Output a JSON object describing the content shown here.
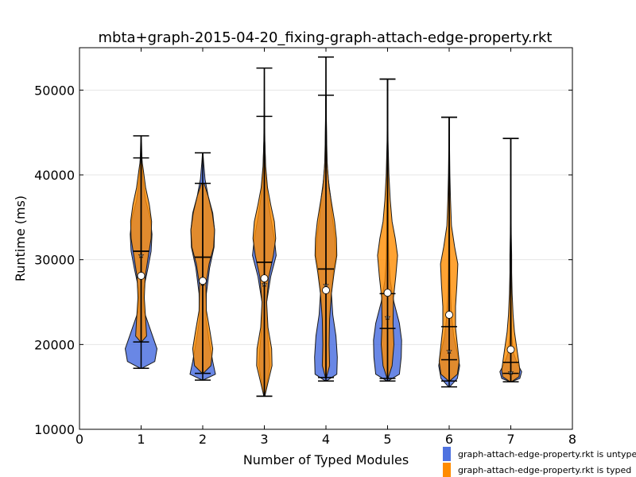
{
  "chart_data": {
    "type": "violin",
    "title": "mbta+graph-2015-04-20_fixing-graph-attach-edge-property.rkt",
    "xlabel": "Number of Typed Modules",
    "ylabel": "Runtime (ms)",
    "xlim": [
      0,
      8
    ],
    "ylim": [
      10000,
      55000
    ],
    "x_ticks": [
      "0",
      "1",
      "2",
      "3",
      "4",
      "5",
      "6",
      "7",
      "8"
    ],
    "y_ticks": [
      "10000",
      "20000",
      "30000",
      "40000",
      "50000"
    ],
    "grid": "horizontal",
    "legend_placement": "bottom-right",
    "colors": {
      "untyped": "#4f72e0",
      "typed": "#ff8c00"
    },
    "series": [
      {
        "name": "graph-attach-edge-property.rkt is untyped",
        "color": "#4f72e0",
        "groups": [
          {
            "x": 1,
            "min": 17200,
            "max": 44600,
            "median": 31000,
            "mean": 30500,
            "profile": [
              [
                17200,
                0.02
              ],
              [
                18000,
                0.3
              ],
              [
                19500,
                0.35
              ],
              [
                21500,
                0.22
              ],
              [
                24000,
                0.06
              ],
              [
                26500,
                0.05
              ],
              [
                29000,
                0.15
              ],
              [
                31000,
                0.22
              ],
              [
                33000,
                0.24
              ],
              [
                35000,
                0.2
              ],
              [
                37000,
                0.1
              ],
              [
                39500,
                0.04
              ],
              [
                42000,
                0.02
              ],
              [
                44600,
                0.005
              ]
            ]
          },
          {
            "x": 2,
            "min": 15800,
            "max": 42600,
            "median": 30300,
            "mean": 27200,
            "profile": [
              [
                15800,
                0.01
              ],
              [
                16500,
                0.28
              ],
              [
                18000,
                0.22
              ],
              [
                20500,
                0.14
              ],
              [
                23000,
                0.07
              ],
              [
                26000,
                0.08
              ],
              [
                29000,
                0.15
              ],
              [
                31500,
                0.25
              ],
              [
                33500,
                0.26
              ],
              [
                35500,
                0.22
              ],
              [
                37500,
                0.12
              ],
              [
                39500,
                0.05
              ],
              [
                41500,
                0.02
              ],
              [
                42600,
                0.005
              ]
            ]
          },
          {
            "x": 3,
            "min": 13900,
            "max": 52600,
            "median": 29700,
            "mean": 27100,
            "profile": [
              [
                13900,
                0.01
              ],
              [
                15500,
                0.06
              ],
              [
                17500,
                0.12
              ],
              [
                19500,
                0.1
              ],
              [
                22000,
                0.06
              ],
              [
                25000,
                0.05
              ],
              [
                28000,
                0.14
              ],
              [
                30500,
                0.26
              ],
              [
                32500,
                0.22
              ],
              [
                35000,
                0.14
              ],
              [
                37500,
                0.07
              ],
              [
                40000,
                0.03
              ],
              [
                44000,
                0.01
              ],
              [
                49000,
                0.005
              ],
              [
                52600,
                0.003
              ]
            ]
          },
          {
            "x": 4,
            "min": 15700,
            "max": 53900,
            "median": 28900,
            "mean": 27000,
            "profile": [
              [
                15700,
                0.01
              ],
              [
                16500,
                0.24
              ],
              [
                18500,
                0.25
              ],
              [
                21000,
                0.22
              ],
              [
                23500,
                0.15
              ],
              [
                26000,
                0.12
              ],
              [
                28500,
                0.16
              ],
              [
                30500,
                0.22
              ],
              [
                32500,
                0.2
              ],
              [
                35000,
                0.14
              ],
              [
                37500,
                0.1
              ],
              [
                39500,
                0.05
              ],
              [
                42000,
                0.02
              ],
              [
                46000,
                0.01
              ],
              [
                50000,
                0.005
              ],
              [
                53900,
                0.003
              ]
            ]
          },
          {
            "x": 5,
            "min": 15700,
            "max": 51300,
            "median": 21900,
            "mean": 23200,
            "profile": [
              [
                15700,
                0.01
              ],
              [
                16500,
                0.26
              ],
              [
                18500,
                0.3
              ],
              [
                20500,
                0.31
              ],
              [
                22500,
                0.26
              ],
              [
                25000,
                0.14
              ],
              [
                27500,
                0.06
              ],
              [
                30000,
                0.03
              ],
              [
                33000,
                0.02
              ],
              [
                36000,
                0.015
              ],
              [
                40000,
                0.01
              ],
              [
                45000,
                0.005
              ],
              [
                51300,
                0.003
              ]
            ]
          },
          {
            "x": 6,
            "min": 15000,
            "max": 46800,
            "median": 18200,
            "mean": 19200,
            "profile": [
              [
                15000,
                0.01
              ],
              [
                16000,
                0.18
              ],
              [
                17500,
                0.23
              ],
              [
                19000,
                0.18
              ],
              [
                21000,
                0.1
              ],
              [
                23500,
                0.05
              ],
              [
                26000,
                0.03
              ],
              [
                29000,
                0.02
              ],
              [
                33000,
                0.01
              ],
              [
                38000,
                0.005
              ],
              [
                42000,
                0.003
              ],
              [
                46800,
                0.002
              ]
            ]
          },
          {
            "x": 7,
            "min": 15600,
            "max": 44300,
            "median": 16600,
            "mean": 16700,
            "profile": [
              [
                15600,
                0.01
              ],
              [
                16000,
                0.2
              ],
              [
                16800,
                0.24
              ],
              [
                17800,
                0.14
              ],
              [
                19000,
                0.06
              ],
              [
                21000,
                0.02
              ],
              [
                24000,
                0.01
              ],
              [
                28000,
                0.005
              ],
              [
                33000,
                0.003
              ],
              [
                40000,
                0.002
              ],
              [
                44300,
                0.001
              ]
            ]
          }
        ]
      },
      {
        "name": "graph-attach-edge-property.rkt is typed",
        "color": "#ff8c00",
        "groups": [
          {
            "x": 1,
            "min": 20300,
            "max": 42000,
            "median": 31000,
            "mean": 28100,
            "profile": [
              [
                20300,
                0.01
              ],
              [
                21000,
                0.12
              ],
              [
                23000,
                0.1
              ],
              [
                25500,
                0.07
              ],
              [
                28000,
                0.09
              ],
              [
                30500,
                0.16
              ],
              [
                32500,
                0.22
              ],
              [
                34500,
                0.23
              ],
              [
                36500,
                0.18
              ],
              [
                38500,
                0.1
              ],
              [
                40500,
                0.05
              ],
              [
                42000,
                0.01
              ]
            ]
          },
          {
            "x": 2,
            "min": 16600,
            "max": 39000,
            "median": 30300,
            "mean": 27500,
            "profile": [
              [
                16600,
                0.01
              ],
              [
                17500,
                0.18
              ],
              [
                19500,
                0.22
              ],
              [
                21500,
                0.16
              ],
              [
                24000,
                0.08
              ],
              [
                27000,
                0.07
              ],
              [
                29500,
                0.14
              ],
              [
                31500,
                0.24
              ],
              [
                33500,
                0.26
              ],
              [
                35500,
                0.21
              ],
              [
                37500,
                0.12
              ],
              [
                39000,
                0.03
              ]
            ]
          },
          {
            "x": 3,
            "min": 13900,
            "max": 46900,
            "median": 29700,
            "mean": 27800,
            "profile": [
              [
                13900,
                0.01
              ],
              [
                15500,
                0.08
              ],
              [
                17500,
                0.17
              ],
              [
                19500,
                0.16
              ],
              [
                22000,
                0.08
              ],
              [
                25000,
                0.05
              ],
              [
                28000,
                0.1
              ],
              [
                30500,
                0.2
              ],
              [
                32500,
                0.25
              ],
              [
                34500,
                0.22
              ],
              [
                36500,
                0.14
              ],
              [
                38500,
                0.07
              ],
              [
                41000,
                0.03
              ],
              [
                44000,
                0.01
              ],
              [
                46900,
                0.005
              ]
            ]
          },
          {
            "x": 4,
            "min": 16100,
            "max": 49400,
            "median": 28900,
            "mean": 26400,
            "profile": [
              [
                16100,
                0.01
              ],
              [
                17500,
                0.08
              ],
              [
                20000,
                0.07
              ],
              [
                23000,
                0.08
              ],
              [
                26000,
                0.12
              ],
              [
                28500,
                0.18
              ],
              [
                30500,
                0.24
              ],
              [
                32500,
                0.23
              ],
              [
                34500,
                0.19
              ],
              [
                36500,
                0.13
              ],
              [
                38500,
                0.07
              ],
              [
                41000,
                0.03
              ],
              [
                44000,
                0.015
              ],
              [
                47000,
                0.007
              ],
              [
                49400,
                0.003
              ]
            ]
          },
          {
            "x": 5,
            "min": 16000,
            "max": 51300,
            "median": 26000,
            "mean": 26100,
            "profile": [
              [
                16000,
                0.01
              ],
              [
                17500,
                0.1
              ],
              [
                20000,
                0.14
              ],
              [
                22500,
                0.12
              ],
              [
                25500,
                0.13
              ],
              [
                28000,
                0.18
              ],
              [
                30500,
                0.22
              ],
              [
                32500,
                0.17
              ],
              [
                34500,
                0.1
              ],
              [
                37000,
                0.06
              ],
              [
                40000,
                0.03
              ],
              [
                44000,
                0.01
              ],
              [
                48000,
                0.005
              ],
              [
                51300,
                0.003
              ]
            ]
          },
          {
            "x": 6,
            "min": 15700,
            "max": 46800,
            "median": 22100,
            "mean": 23500,
            "profile": [
              [
                15700,
                0.01
              ],
              [
                16500,
                0.18
              ],
              [
                18000,
                0.22
              ],
              [
                20000,
                0.18
              ],
              [
                22000,
                0.14
              ],
              [
                24500,
                0.14
              ],
              [
                27000,
                0.17
              ],
              [
                29500,
                0.19
              ],
              [
                31500,
                0.12
              ],
              [
                34000,
                0.05
              ],
              [
                37000,
                0.03
              ],
              [
                40000,
                0.015
              ],
              [
                43000,
                0.008
              ],
              [
                46800,
                0.003
              ]
            ]
          },
          {
            "x": 7,
            "min": 15600,
            "max": 44300,
            "median": 17900,
            "mean": 19400,
            "profile": [
              [
                15600,
                0.01
              ],
              [
                16200,
                0.18
              ],
              [
                17000,
                0.2
              ],
              [
                18500,
                0.16
              ],
              [
                20000,
                0.12
              ],
              [
                21500,
                0.08
              ],
              [
                23500,
                0.05
              ],
              [
                26000,
                0.03
              ],
              [
                28500,
                0.02
              ],
              [
                30500,
                0.02
              ],
              [
                33000,
                0.01
              ],
              [
                37000,
                0.005
              ],
              [
                41000,
                0.003
              ],
              [
                44300,
                0.001
              ]
            ]
          }
        ]
      }
    ]
  }
}
